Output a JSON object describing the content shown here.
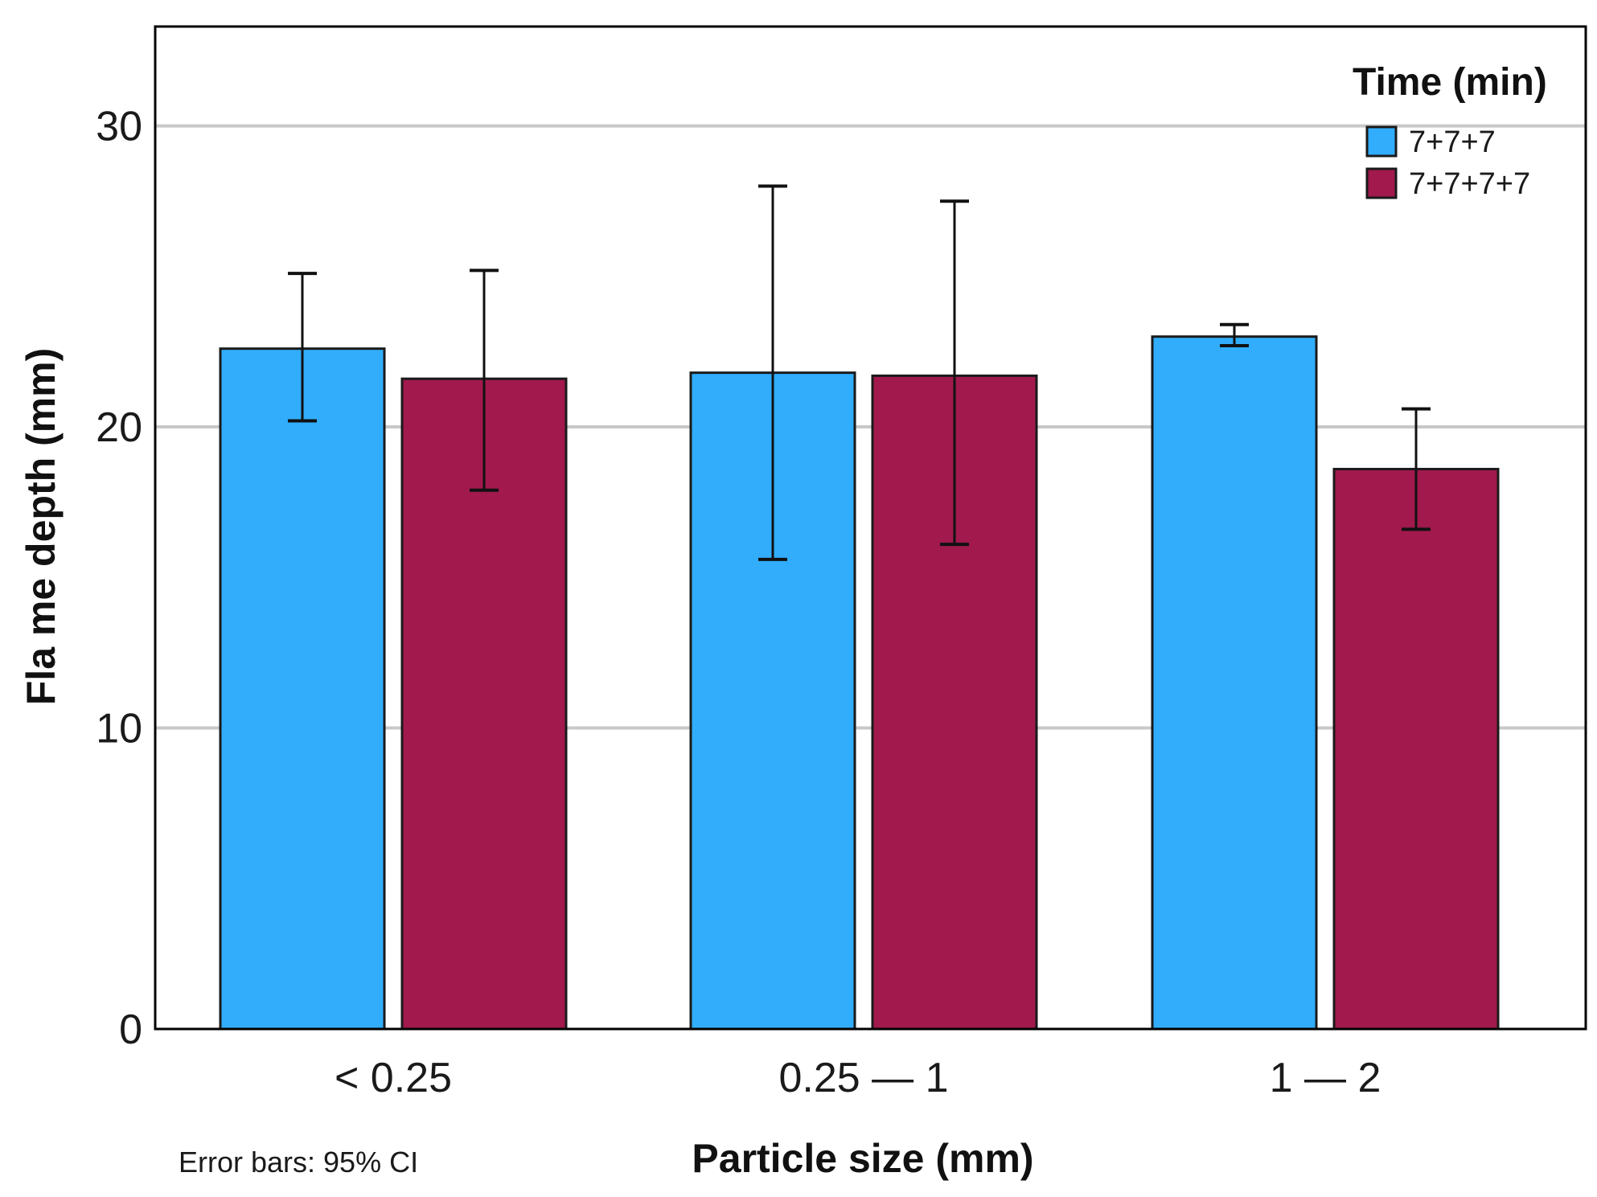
{
  "chart_data": {
    "type": "bar",
    "categories": [
      "< 0.25",
      "0.25 — 1",
      "1 — 2"
    ],
    "series": [
      {
        "name": "7+7+7",
        "color": "#31adfb",
        "values": [
          22.6,
          21.8,
          23.0
        ],
        "error_low": [
          20.2,
          15.6,
          22.7
        ],
        "error_high": [
          25.1,
          28.0,
          23.4
        ]
      },
      {
        "name": "7+7+7+7",
        "color": "#a1194d",
        "values": [
          21.6,
          21.7,
          18.6
        ],
        "error_low": [
          17.9,
          16.1,
          16.6
        ],
        "error_high": [
          25.2,
          27.5,
          20.6
        ]
      }
    ],
    "xlabel": "Particle size (mm)",
    "ylabel": "Fla me depth (mm)",
    "ylim": [
      0,
      30
    ],
    "yticks": [
      0,
      10,
      20,
      30
    ],
    "grid": true,
    "legend": {
      "title": "Time (min)",
      "placement": "top-right"
    },
    "footnote": "Error bars: 95% CI"
  }
}
